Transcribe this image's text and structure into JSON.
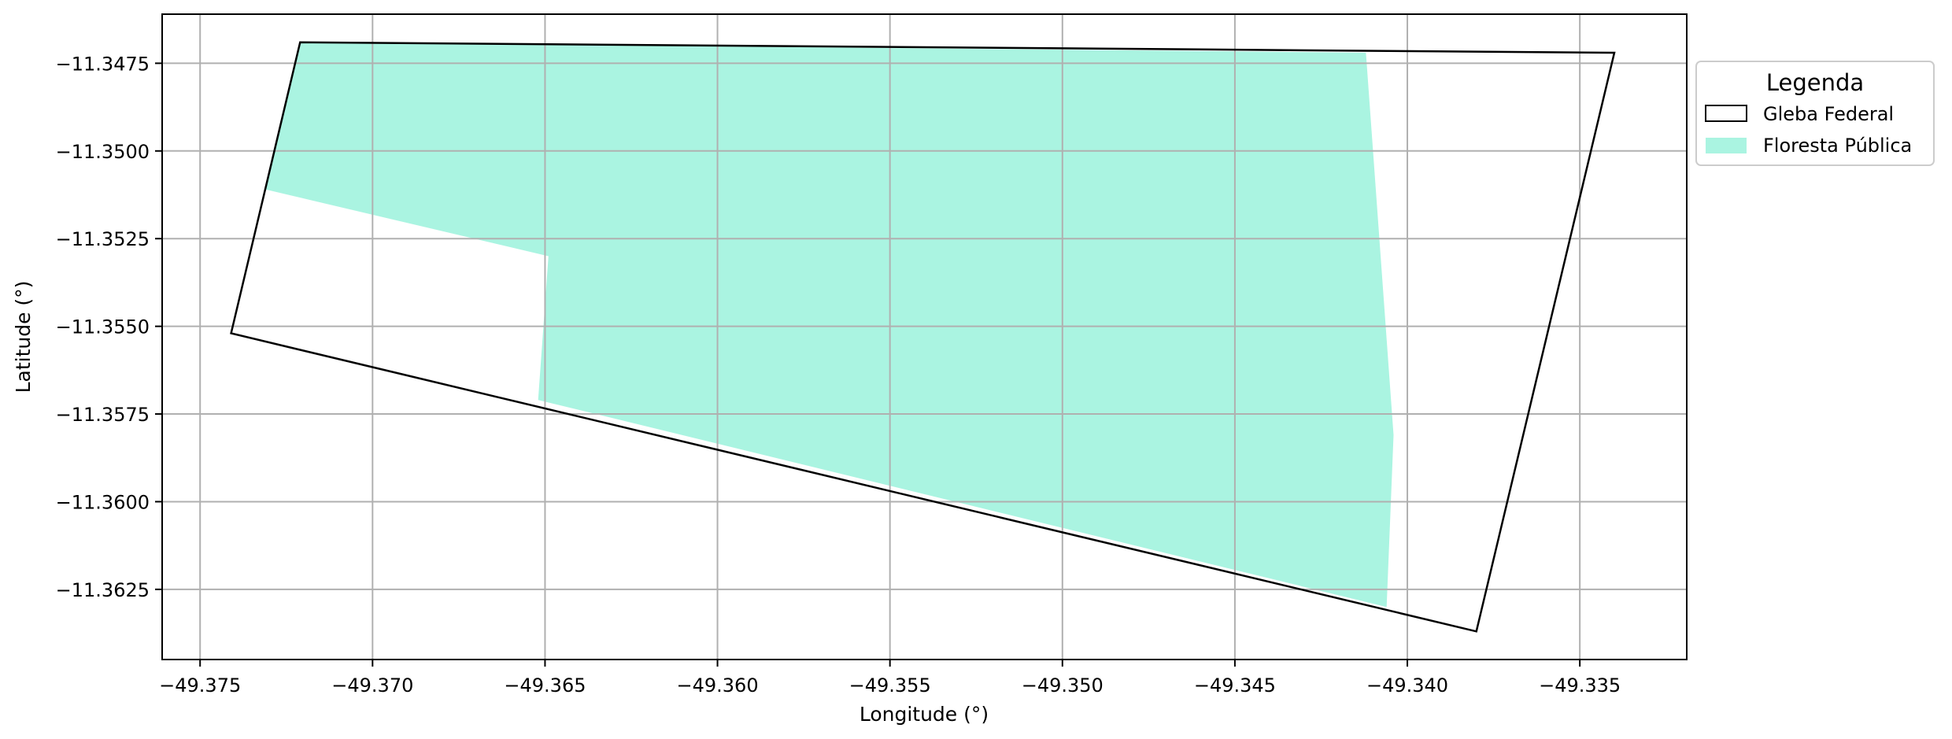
{
  "chart_data": {
    "type": "map",
    "xlabel": "Longitude (°)",
    "ylabel": "Latitude (°)",
    "xlim": [
      -49.3761,
      -49.3319
    ],
    "ylim": [
      -11.3645,
      -11.3461
    ],
    "grid": true,
    "x_ticks": [
      -49.375,
      -49.37,
      -49.365,
      -49.36,
      -49.355,
      -49.35,
      -49.345,
      -49.34,
      -49.335
    ],
    "x_tick_labels": [
      "−49.375",
      "−49.370",
      "−49.365",
      "−49.360",
      "−49.355",
      "−49.350",
      "−49.345",
      "−49.340",
      "−49.335"
    ],
    "y_ticks": [
      -11.3475,
      -11.35,
      -11.3525,
      -11.355,
      -11.3575,
      -11.36,
      -11.3625
    ],
    "y_tick_labels": [
      "−11.3475",
      "−11.3500",
      "−11.3525",
      "−11.3550",
      "−11.3575",
      "−11.3600",
      "−11.3625"
    ],
    "legend": {
      "title": "Legenda",
      "placement": "outside-top-right",
      "entries": [
        {
          "label": "Gleba Federal",
          "style": "outline",
          "color": "#000000"
        },
        {
          "label": "Floresta Pública",
          "style": "fill",
          "color": "#aaf4e1"
        }
      ]
    },
    "layers": [
      {
        "name": "Floresta Pública",
        "fill": "#aaf4e1",
        "coords": [
          [
            -49.3721,
            -11.3469
          ],
          [
            -49.3412,
            -11.3472
          ],
          [
            -49.3404,
            -11.3581
          ],
          [
            -49.3406,
            -11.363
          ],
          [
            -49.3652,
            -11.3571
          ],
          [
            -49.3649,
            -11.353
          ],
          [
            -49.3731,
            -11.3511
          ]
        ]
      },
      {
        "name": "Gleba Federal",
        "stroke": "#000000",
        "coords": [
          [
            -49.3721,
            -11.3469
          ],
          [
            -49.334,
            -11.3472
          ],
          [
            -49.338,
            -11.3637
          ],
          [
            -49.3741,
            -11.3552
          ]
        ]
      }
    ]
  }
}
